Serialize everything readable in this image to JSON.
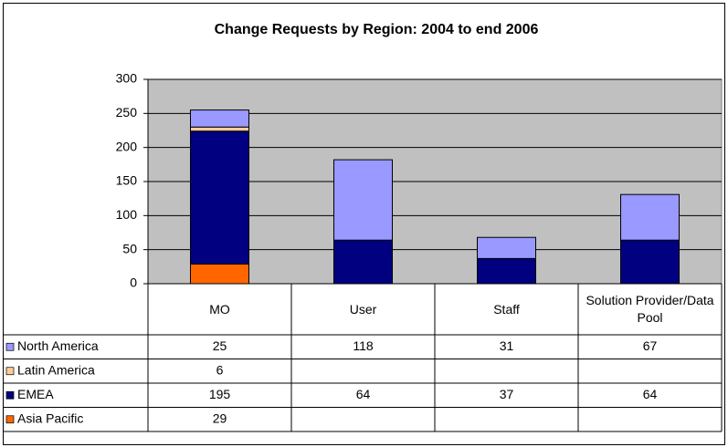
{
  "chart_data": {
    "type": "bar",
    "stacked": true,
    "title": "Change Requests by Region: 2004 to end 2006",
    "categories": [
      "MO",
      "User",
      "Staff",
      "Solution Provider/Data Pool"
    ],
    "series": [
      {
        "name": "North America",
        "color": "#9999ff",
        "values": [
          25,
          118,
          31,
          67
        ]
      },
      {
        "name": "Latin America",
        "color": "#ffcc99",
        "values": [
          6,
          null,
          null,
          null
        ]
      },
      {
        "name": "EMEA",
        "color": "#000080",
        "values": [
          195,
          64,
          37,
          64
        ]
      },
      {
        "name": "Asia Pacific",
        "color": "#ff6600",
        "values": [
          29,
          null,
          null,
          null
        ]
      }
    ],
    "ylim": [
      0,
      300
    ],
    "yticks": [
      0,
      50,
      100,
      150,
      200,
      250,
      300
    ],
    "grid": true,
    "plot_background": "#c0c0c0",
    "data_table": true
  }
}
